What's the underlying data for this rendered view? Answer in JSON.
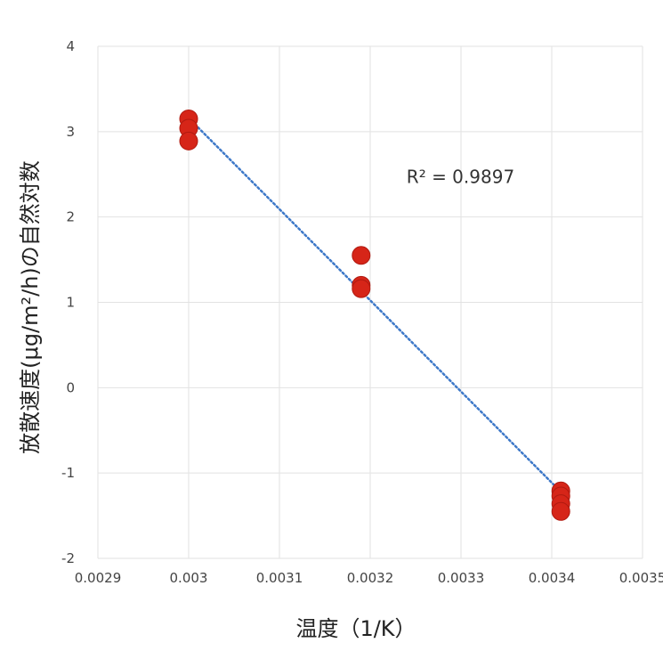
{
  "chart_data": {
    "type": "scatter",
    "title": "",
    "xlabel": "温度（1/K）",
    "ylabel": "放散速度(μg/m²/h)の自然対数",
    "xlim": [
      0.0029,
      0.0035
    ],
    "ylim": [
      -2,
      4
    ],
    "x_ticks": [
      "0.0029",
      "0.003",
      "0.0031",
      "0.0032",
      "0.0033",
      "0.0034",
      "0.0035"
    ],
    "y_ticks": [
      "-2",
      "-1",
      "0",
      "1",
      "2",
      "3",
      "4"
    ],
    "grid": true,
    "legend": "none",
    "marker_color": "#d62518",
    "trendline_color": "#3d78c8",
    "series": [
      {
        "points": [
          {
            "x": 0.003,
            "y": 3.15
          },
          {
            "x": 0.003,
            "y": 3.04
          },
          {
            "x": 0.003,
            "y": 2.89
          },
          {
            "x": 0.00319,
            "y": 1.55
          },
          {
            "x": 0.00319,
            "y": 1.2
          },
          {
            "x": 0.00319,
            "y": 1.16
          },
          {
            "x": 0.00341,
            "y": -1.21
          },
          {
            "x": 0.00341,
            "y": -1.27
          },
          {
            "x": 0.00341,
            "y": -1.36
          },
          {
            "x": 0.00341,
            "y": -1.45
          }
        ]
      }
    ],
    "trendline": {
      "type": "linear",
      "from": {
        "x": 0.003,
        "y": 3.16
      },
      "to": {
        "x": 0.00341,
        "y": -1.22
      }
    },
    "annotation": {
      "text": "R² = 0.9897",
      "x": 0.00324,
      "y": 2.4
    }
  }
}
